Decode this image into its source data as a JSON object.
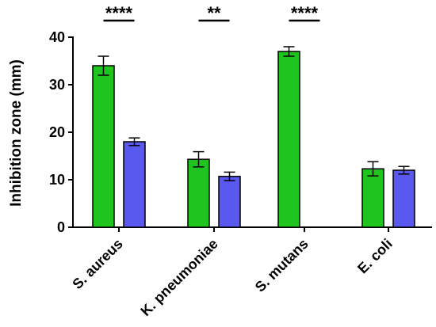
{
  "chart_data": {
    "type": "bar",
    "title": "",
    "xlabel": "",
    "ylabel": "Inhibition zone (mm)",
    "ylim": [
      0,
      40
    ],
    "yticks": [
      0,
      10,
      20,
      30,
      40
    ],
    "grid": false,
    "categories": [
      "S. aureus",
      "K. pneumoniae",
      "S. mutans",
      "E. coli"
    ],
    "series": [
      {
        "color": "#1fc41f",
        "values": [
          34,
          14.3,
          37,
          12.3
        ],
        "errors": [
          2.0,
          1.6,
          1.0,
          1.5
        ]
      },
      {
        "color": "#5959f0",
        "values": [
          18,
          10.7,
          null,
          12
        ],
        "errors": [
          0.8,
          0.9,
          null,
          0.8
        ]
      }
    ],
    "significance": [
      {
        "category": "S. aureus",
        "label": "****"
      },
      {
        "category": "K. pneumoniae",
        "label": "**"
      },
      {
        "category": "S. mutans",
        "label": "****"
      }
    ]
  }
}
